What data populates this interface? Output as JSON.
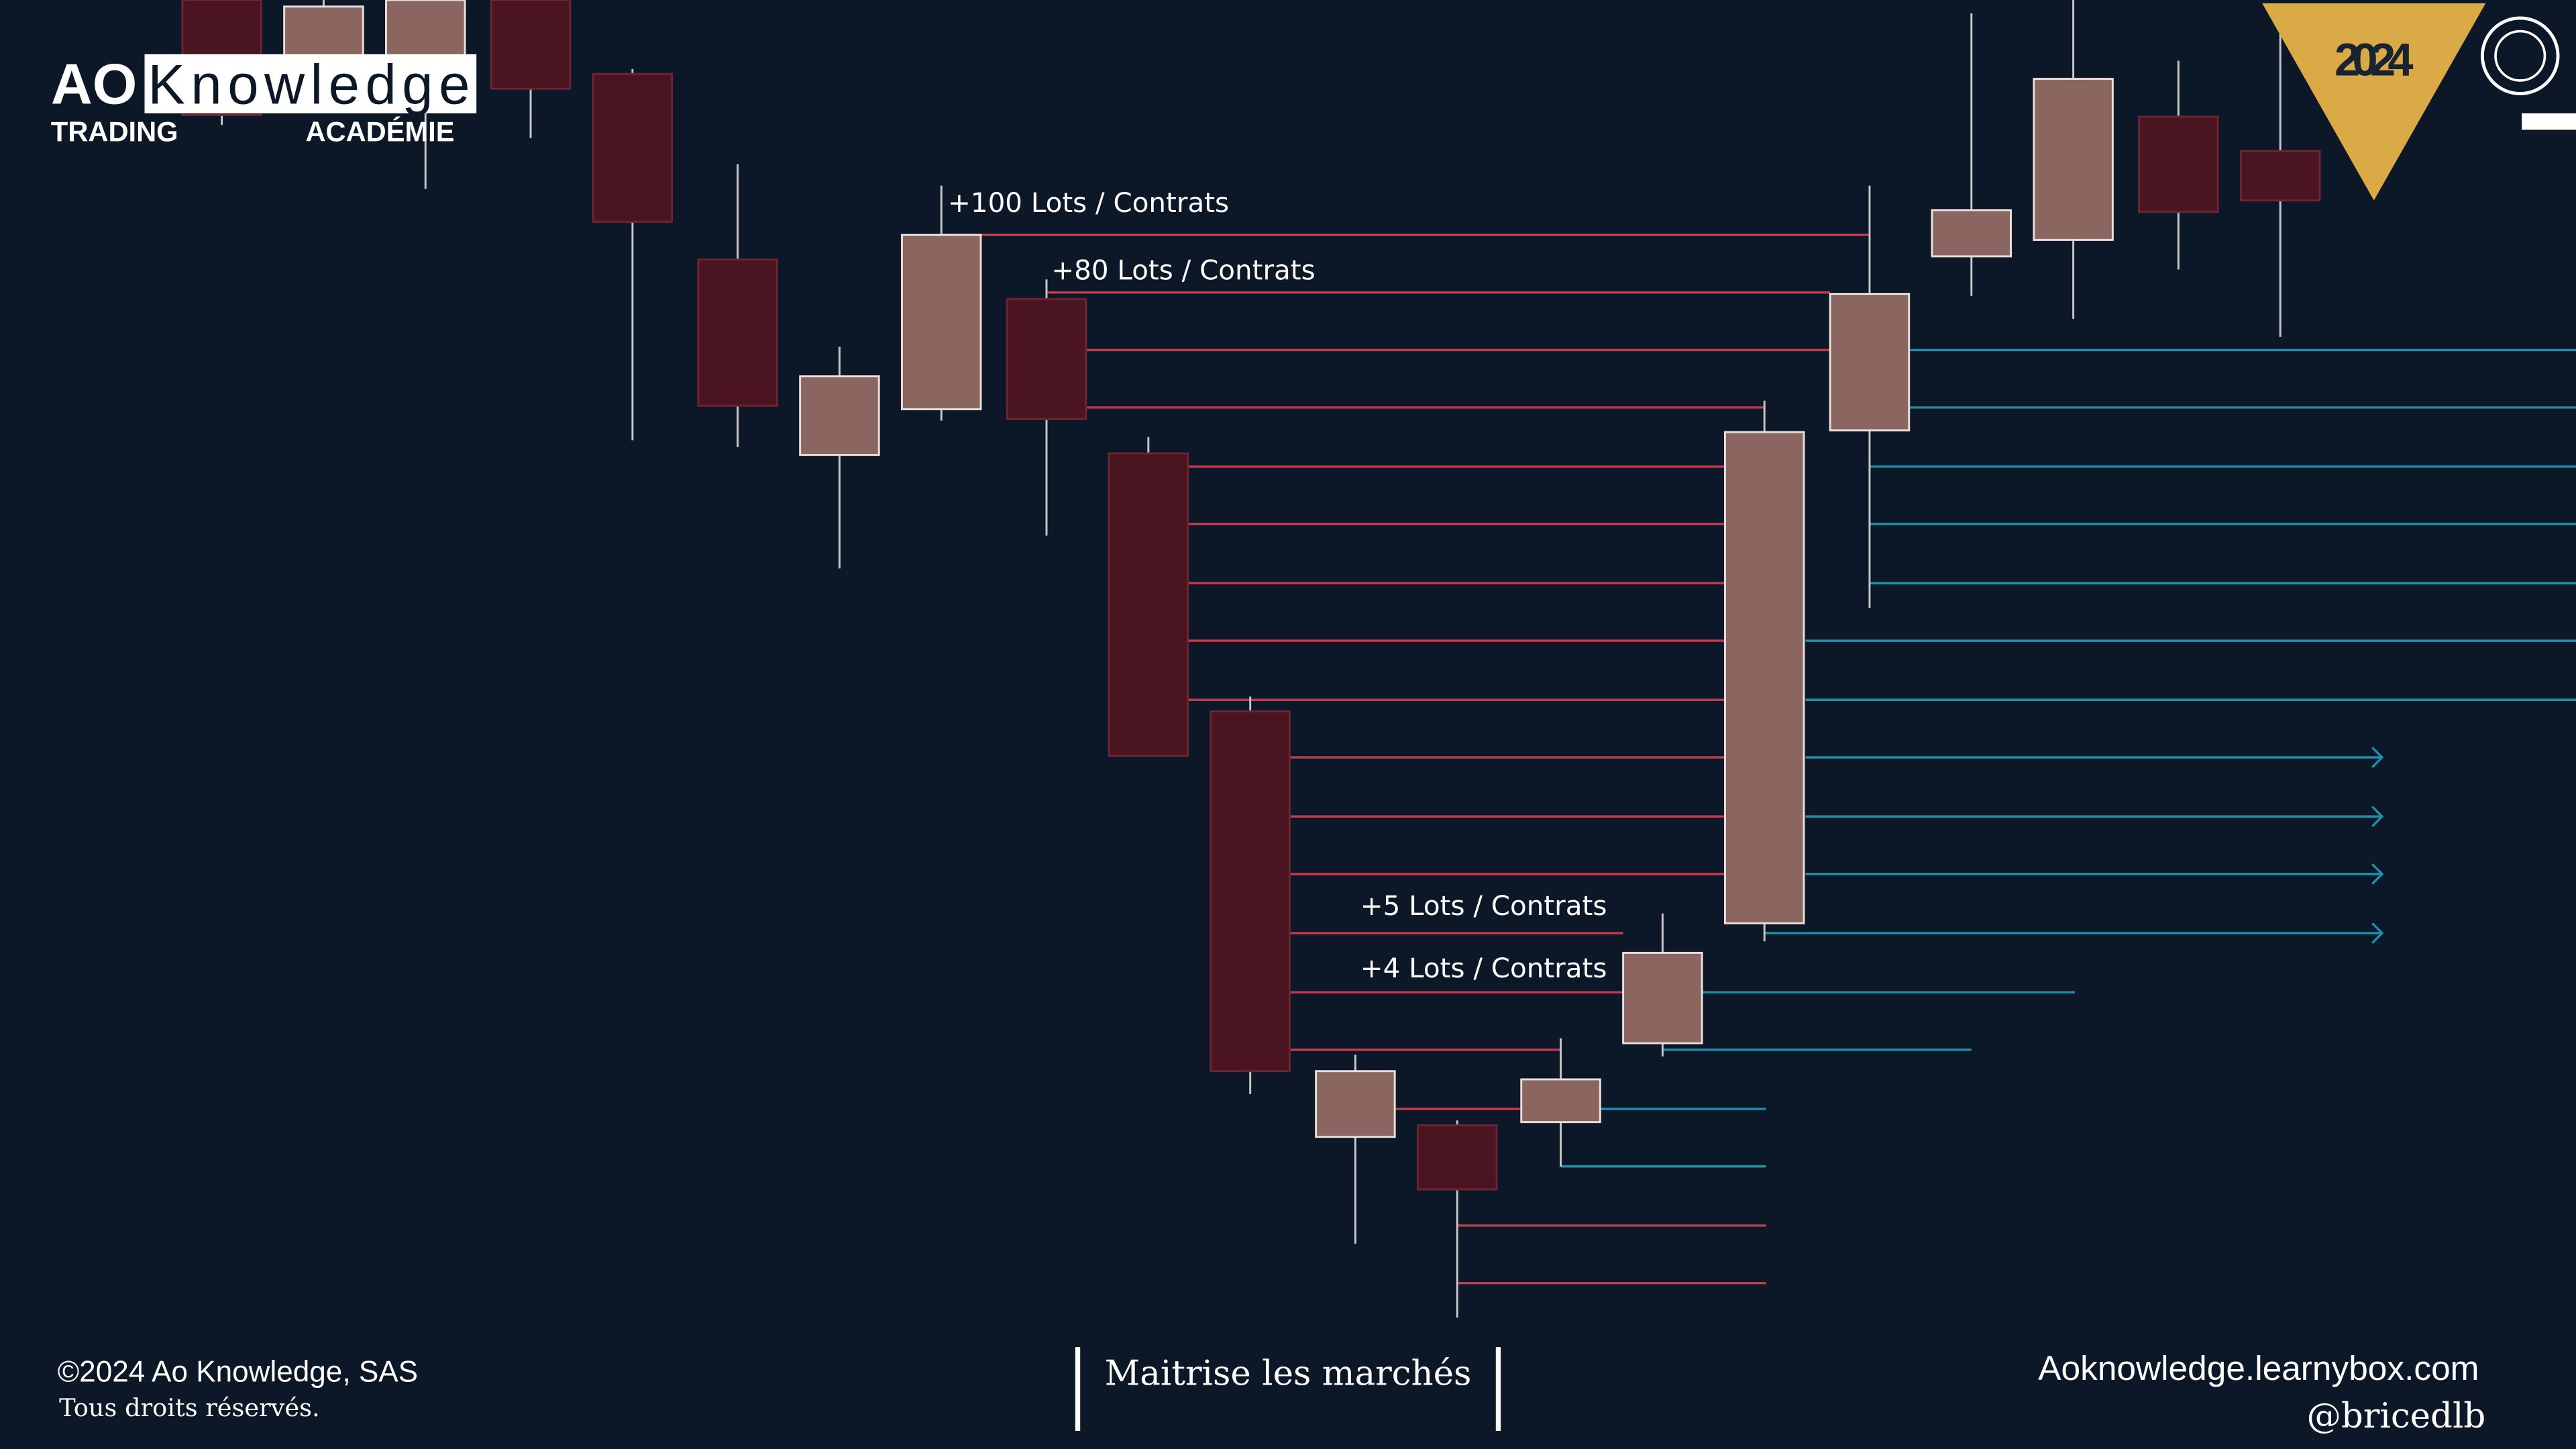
{
  "header": {
    "logo_ao": "AO",
    "logo_knowledge": "Knowledge",
    "logo_trading": "TRADING",
    "logo_academie": "ACADÉMIE",
    "year": "2024"
  },
  "annotations": [
    "+100 Lots / Contrats",
    "+80 Lots / Contrats",
    "+5 Lots / Contrats",
    "+4 Lots / Contrats"
  ],
  "footer": {
    "copyright": "©2024 Ao Knowledge, SAS",
    "rights": "Tous droits réservés.",
    "tagline": "Maitrise les marchés",
    "website": "Aoknowledge.learnybox.com",
    "handle": "@bricedlb"
  }
}
